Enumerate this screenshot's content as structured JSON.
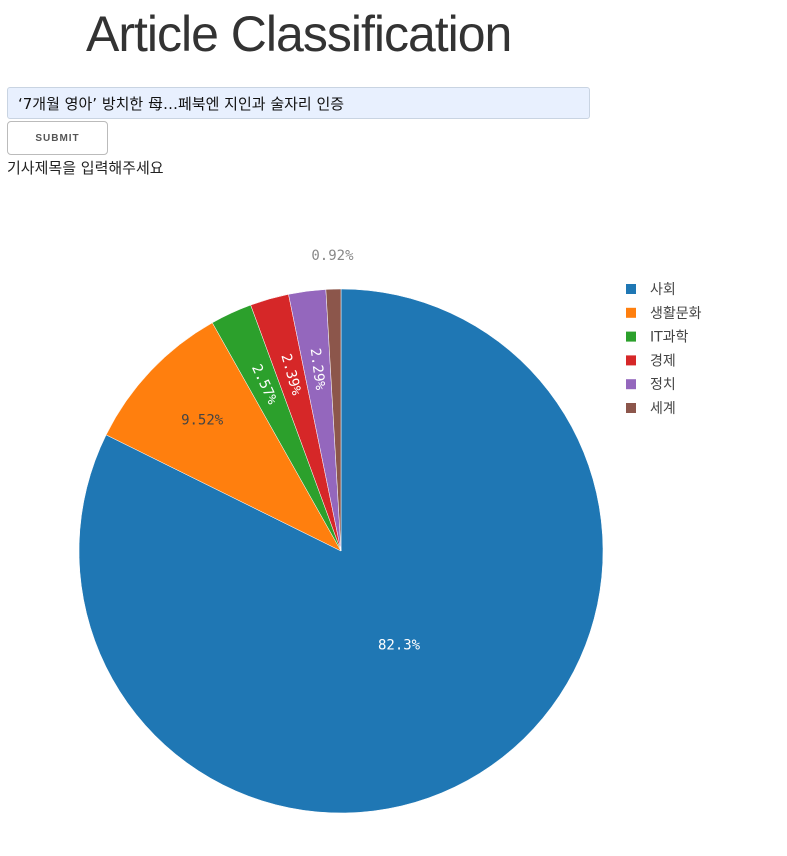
{
  "page": {
    "title": "Article Classification",
    "input_value": "‘7개월 영아’ 방치한 母…페북엔 지인과 술자리 인증",
    "submit_label": "SUBMIT",
    "hint": "기사제목을 입력해주세요"
  },
  "chart_data": {
    "type": "pie",
    "categories": [
      "사회",
      "생활문화",
      "IT과학",
      "경제",
      "정치",
      "세계"
    ],
    "values": [
      82.3,
      9.52,
      2.57,
      2.39,
      2.29,
      0.92
    ],
    "labels": [
      "82.3%",
      "9.52%",
      "2.57%",
      "2.39%",
      "2.29%",
      "0.92%"
    ],
    "colors": [
      "#1f77b4",
      "#ff7f0e",
      "#2ca02c",
      "#d62728",
      "#9467bd",
      "#8c564b"
    ],
    "legend_position": "top-right",
    "direction": "clockwise",
    "start": "top"
  }
}
